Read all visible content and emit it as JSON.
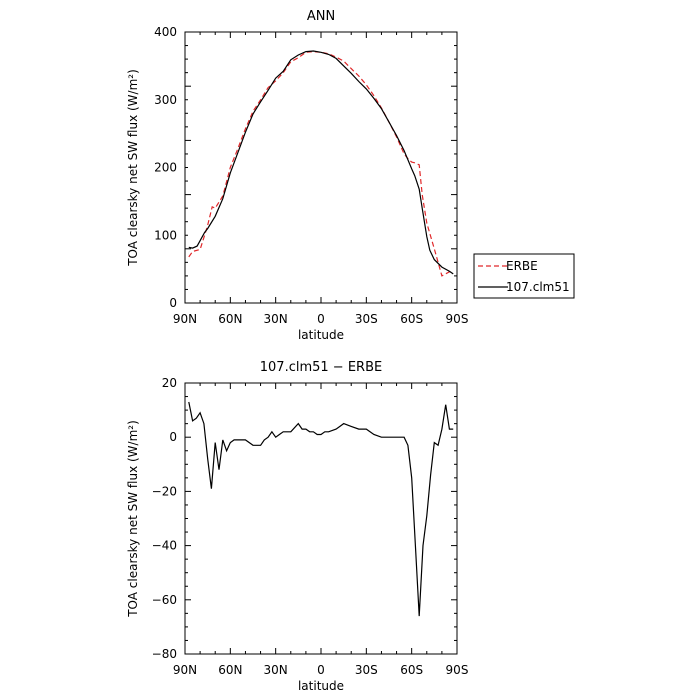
{
  "chart_data": [
    {
      "type": "line",
      "title": "ANN",
      "xlabel": "latitude",
      "ylabel": "TOA clearsky net SW flux (W/m²)",
      "xlim": [
        -90,
        90
      ],
      "ylim": [
        0,
        400
      ],
      "xticks": [
        -90,
        -60,
        -30,
        0,
        30,
        60,
        90
      ],
      "xticklabels": [
        "90N",
        "60N",
        "30N",
        "0",
        "30S",
        "60S",
        "90S"
      ],
      "yticks": [
        0,
        100,
        200,
        300,
        400
      ],
      "yticklabels": [
        "0",
        "100",
        "200",
        "300",
        "400"
      ],
      "legend": {
        "position": "right",
        "entries": [
          "ERBE",
          "107.clm51"
        ]
      },
      "series": [
        {
          "name": "ERBE",
          "color": "#e0282a",
          "dash": "dashed",
          "x": [
            -87.5,
            -85,
            -80,
            -77,
            -75,
            -72,
            -70,
            -65,
            -60,
            -55,
            -50,
            -45,
            -40,
            -35,
            -30,
            -25,
            -20,
            -15,
            -10,
            -5,
            0,
            5,
            10,
            15,
            20,
            25,
            30,
            35,
            40,
            45,
            50,
            55,
            58,
            60,
            62,
            65,
            67,
            70,
            75,
            80,
            85,
            87.5
          ],
          "y": [
            68,
            76,
            79,
            100,
            115,
            142,
            140,
            158,
            200,
            228,
            257,
            283,
            300,
            318,
            328,
            340,
            356,
            362,
            370,
            371,
            370,
            368,
            363,
            357,
            346,
            335,
            322,
            306,
            288,
            267,
            245,
            220,
            212,
            208,
            207,
            204,
            160,
            118,
            80,
            40,
            46,
            46
          ]
        },
        {
          "name": "107.clm51",
          "color": "#000000",
          "dash": "solid",
          "x": [
            -87.5,
            -85,
            -82,
            -80,
            -77,
            -75,
            -70,
            -65,
            -60,
            -55,
            -50,
            -45,
            -40,
            -35,
            -30,
            -25,
            -20,
            -15,
            -10,
            -5,
            0,
            5,
            10,
            15,
            20,
            25,
            30,
            35,
            40,
            45,
            50,
            55,
            60,
            62,
            65,
            67,
            70,
            72,
            75,
            80,
            85,
            87.5
          ],
          "y": [
            82,
            81,
            84,
            92,
            104,
            110,
            128,
            154,
            192,
            222,
            252,
            279,
            297,
            314,
            332,
            342,
            359,
            366,
            371,
            372,
            370,
            367,
            361,
            350,
            339,
            327,
            316,
            302,
            287,
            267,
            247,
            225,
            198,
            188,
            168,
            140,
            98,
            78,
            64,
            53,
            47,
            43
          ]
        }
      ]
    },
    {
      "type": "line",
      "title": "107.clm51 − ERBE",
      "xlabel": "latitude",
      "ylabel": "TOA clearsky net SW flux (W/m²)",
      "xlim": [
        -90,
        90
      ],
      "ylim": [
        -80,
        20
      ],
      "xticks": [
        -90,
        -60,
        -30,
        0,
        30,
        60,
        90
      ],
      "xticklabels": [
        "90N",
        "60N",
        "30N",
        "0",
        "30S",
        "60S",
        "90S"
      ],
      "yticks": [
        -80,
        -60,
        -40,
        -20,
        0,
        20
      ],
      "yticklabels": [
        "−80",
        "−60",
        "−40",
        "−20",
        "0",
        "20"
      ],
      "series": [
        {
          "name": "107.clm51 − ERBE",
          "color": "#000000",
          "dash": "solid",
          "x": [
            -87.5,
            -85,
            -82.5,
            -80,
            -77.5,
            -75,
            -72.5,
            -70,
            -67.5,
            -65,
            -62.5,
            -60,
            -57.5,
            -55,
            -50,
            -45,
            -40,
            -37.5,
            -35,
            -32.5,
            -30,
            -27.5,
            -25,
            -22.5,
            -20,
            -15,
            -12.5,
            -10,
            -7.5,
            -5,
            -2.5,
            0,
            2.5,
            5,
            10,
            12.5,
            15,
            20,
            25,
            30,
            35,
            40,
            45,
            50,
            55,
            57.5,
            60,
            62.5,
            65,
            67.5,
            70,
            72.5,
            75,
            77.5,
            80,
            82.5,
            85,
            87.5
          ],
          "y": [
            13,
            6,
            7,
            9,
            5,
            -8,
            -19,
            -2,
            -12,
            -1,
            -5,
            -2,
            -1,
            -1,
            -1,
            -3,
            -3,
            -1,
            0,
            2,
            0,
            1,
            2,
            2,
            2,
            5,
            3,
            3,
            2,
            2,
            1,
            1,
            2,
            2,
            3,
            4,
            5,
            4,
            3,
            3,
            1,
            0,
            0,
            0,
            0,
            -3,
            -15,
            -40,
            -66,
            -40,
            -29,
            -14,
            -2,
            -3,
            3,
            12,
            3,
            3
          ]
        }
      ]
    }
  ]
}
